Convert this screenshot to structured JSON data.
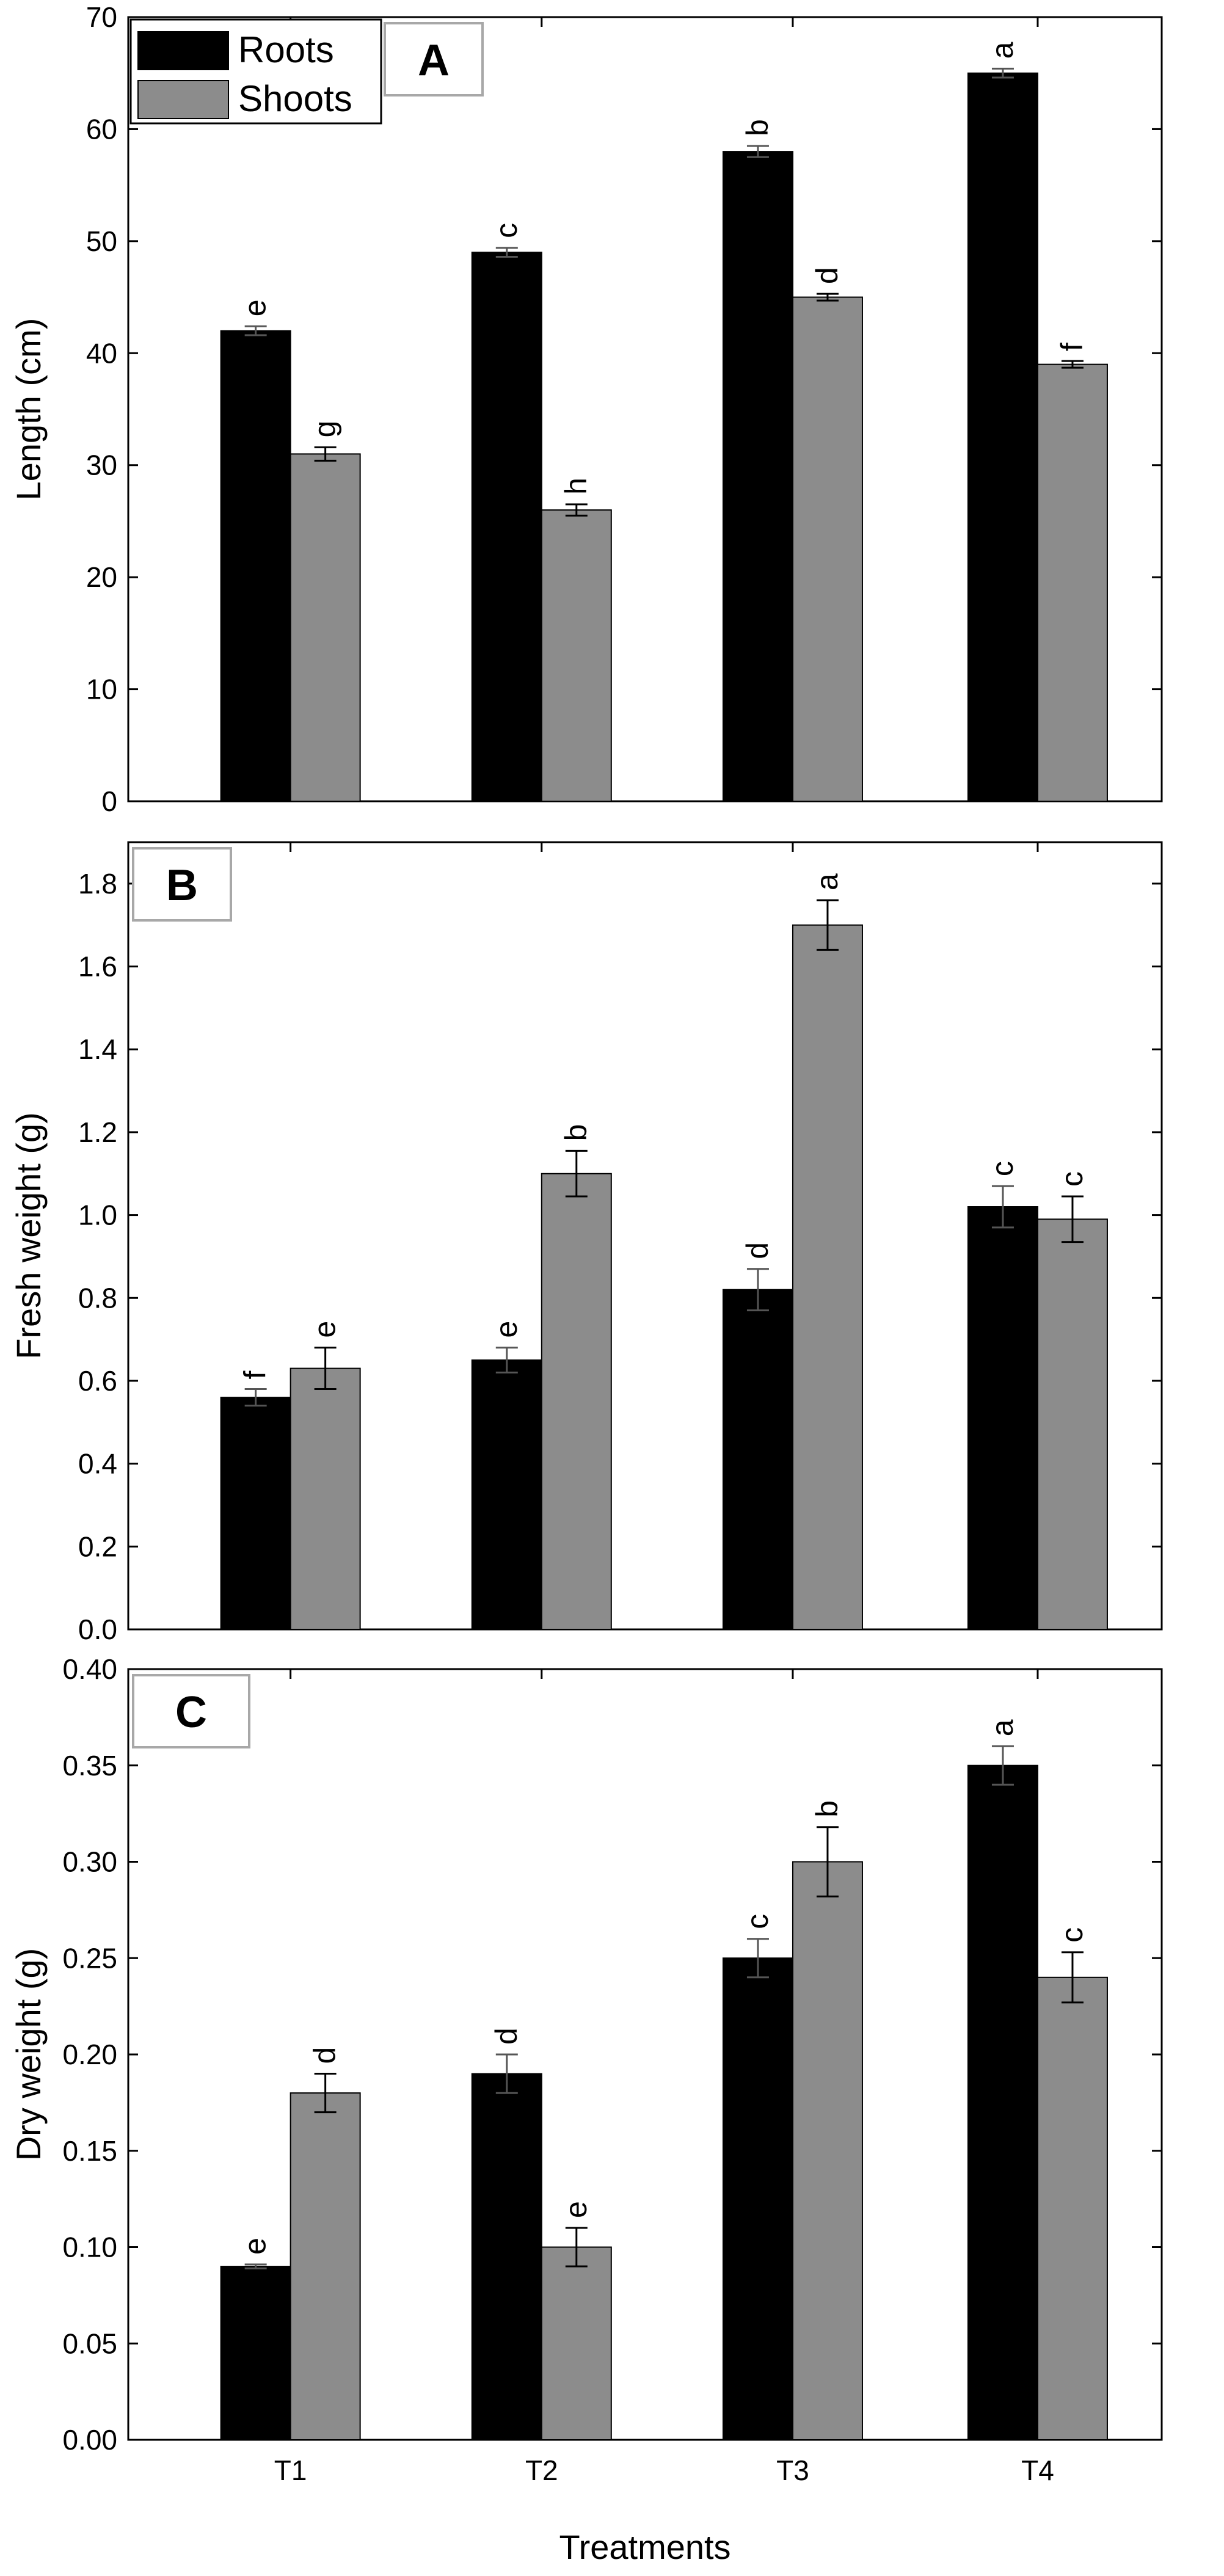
{
  "chart_data": [
    {
      "type": "bar",
      "panel_label": "A",
      "ylabel": "Length (cm)",
      "xlabel": "",
      "ylim": [
        0,
        70
      ],
      "yticks": [
        0,
        10,
        20,
        30,
        40,
        50,
        60,
        70
      ],
      "categories": [
        "T1",
        "T2",
        "T3",
        "T4"
      ],
      "show_xtick_labels": false,
      "grid": false,
      "legend": {
        "placement": "top-left",
        "entries": [
          "Roots",
          "Shoots"
        ]
      },
      "series": [
        {
          "name": "Roots",
          "color": "#000000",
          "values": [
            42,
            49,
            58,
            65
          ],
          "errors": [
            0.4,
            0.4,
            0.5,
            0.4
          ],
          "letters": [
            "e",
            "c",
            "b",
            "a"
          ]
        },
        {
          "name": "Shoots",
          "color": "#8c8c8c",
          "values": [
            31,
            26,
            45,
            39
          ],
          "errors": [
            0.6,
            0.5,
            0.3,
            0.3
          ],
          "letters": [
            "g",
            "h",
            "d",
            "f"
          ]
        }
      ]
    },
    {
      "type": "bar",
      "panel_label": "B",
      "ylabel": "Fresh weight (g)",
      "xlabel": "",
      "ylim": [
        0,
        1.9
      ],
      "yticks": [
        "0.0",
        "0.2",
        "0.4",
        "0.6",
        "0.8",
        "1.0",
        "1.2",
        "1.4",
        "1.6",
        "1.8"
      ],
      "categories": [
        "T1",
        "T2",
        "T3",
        "T4"
      ],
      "show_xtick_labels": false,
      "grid": false,
      "series": [
        {
          "name": "Roots",
          "color": "#000000",
          "values": [
            0.56,
            0.65,
            0.82,
            1.02
          ],
          "errors": [
            0.02,
            0.03,
            0.05,
            0.05
          ],
          "letters": [
            "f",
            "e",
            "d",
            "c"
          ]
        },
        {
          "name": "Shoots",
          "color": "#8c8c8c",
          "values": [
            0.63,
            1.1,
            1.7,
            0.99
          ],
          "errors": [
            0.05,
            0.055,
            0.06,
            0.055
          ],
          "letters": [
            "e",
            "b",
            "a",
            "c"
          ]
        }
      ]
    },
    {
      "type": "bar",
      "panel_label": "C",
      "ylabel": "Dry weight (g)",
      "xlabel": "Treatments",
      "ylim": [
        0,
        0.4
      ],
      "yticks": [
        "0.00",
        "0.05",
        "0.10",
        "0.15",
        "0.20",
        "0.25",
        "0.30",
        "0.35",
        "0.40"
      ],
      "categories": [
        "T1",
        "T2",
        "T3",
        "T4"
      ],
      "show_xtick_labels": true,
      "grid": false,
      "series": [
        {
          "name": "Roots",
          "color": "#000000",
          "values": [
            0.09,
            0.19,
            0.25,
            0.35
          ],
          "errors": [
            0.001,
            0.01,
            0.01,
            0.01
          ],
          "letters": [
            "e",
            "d",
            "c",
            "a"
          ]
        },
        {
          "name": "Shoots",
          "color": "#8c8c8c",
          "values": [
            0.18,
            0.1,
            0.3,
            0.24
          ],
          "errors": [
            0.01,
            0.01,
            0.018,
            0.013
          ],
          "letters": [
            "d",
            "e",
            "b",
            "c"
          ]
        }
      ]
    }
  ]
}
